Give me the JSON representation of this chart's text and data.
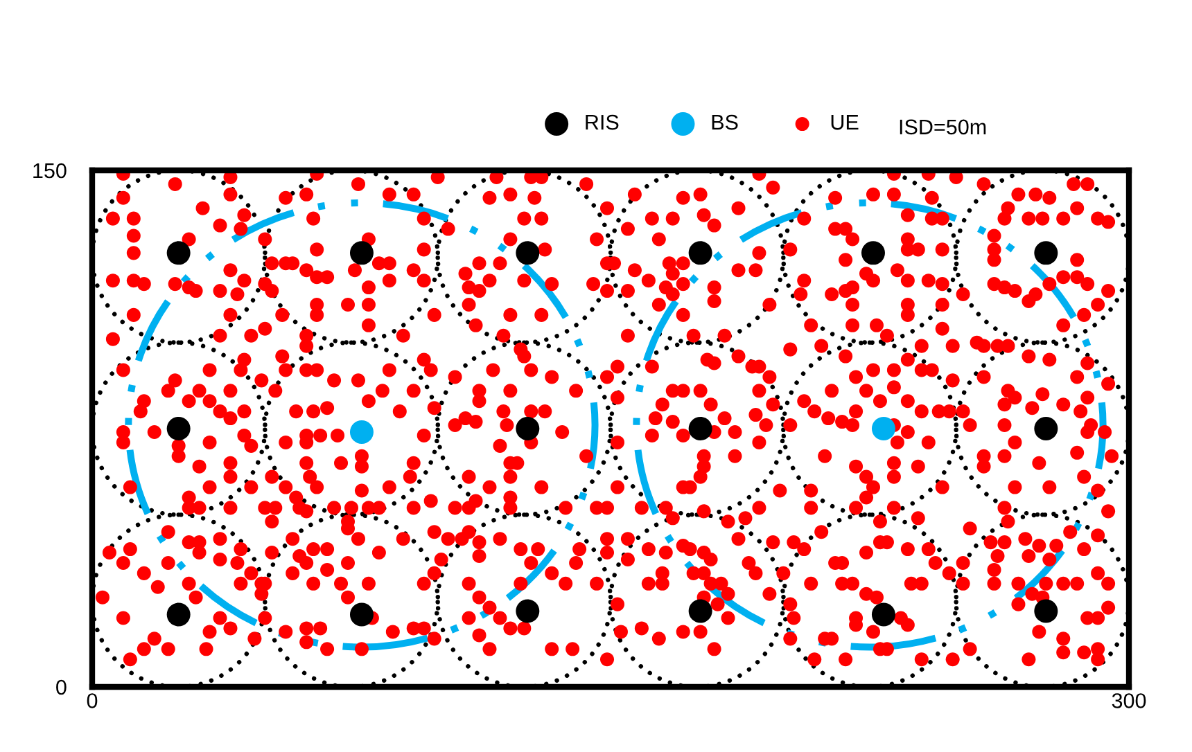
{
  "chart_data": {
    "type": "scatter",
    "xlim": [
      0,
      300
    ],
    "ylim": [
      0,
      150
    ],
    "xticks": [
      0,
      300
    ],
    "yticks": [
      0,
      150
    ],
    "marker": "circle",
    "legend": "top",
    "annotations": [
      "ISD=50m"
    ],
    "series": [
      {
        "name": "RIS",
        "color": "#000000",
        "x": [
          25,
          78,
          126,
          176,
          226,
          276,
          25,
          126,
          176,
          276,
          25,
          78,
          126,
          176,
          229,
          276
        ],
        "values": [
          126,
          126,
          126,
          126,
          126,
          126,
          75,
          75,
          75,
          75,
          21,
          21,
          22,
          22,
          21,
          22
        ]
      },
      {
        "name": "BS",
        "color": "#00b0f0",
        "x": [
          78,
          229
        ],
        "values": [
          74,
          75
        ]
      },
      {
        "name": "UE",
        "color": "#ff0000",
        "x": [
          9,
          40,
          65,
          62,
          56,
          77,
          86,
          93,
          24,
          9,
          32,
          40,
          44,
          6,
          12,
          64,
          96,
          37,
          43,
          50,
          12,
          28,
          80,
          12,
          65,
          96,
          52,
          56,
          58,
          62,
          65,
          68,
          76,
          83,
          86,
          93,
          86,
          96,
          80,
          6,
          12,
          15,
          24,
          28,
          30,
          40,
          44,
          37,
          42,
          50,
          52,
          65,
          65,
          74,
          80,
          55,
          40,
          12,
          99,
          6,
          37,
          46,
          50,
          62,
          62,
          80,
          90,
          9,
          24,
          22,
          34,
          44,
          43,
          49,
          55,
          56,
          62,
          65,
          70,
          77,
          84,
          86,
          93,
          96,
          98,
          15,
          14,
          28,
          31,
          34,
          37,
          40,
          40,
          44,
          53,
          59,
          64,
          68,
          80,
          89,
          99,
          100,
          117,
          127,
          130,
          143,
          149,
          157,
          171,
          176,
          187,
          193,
          197,
          115,
          121,
          128,
          125,
          130,
          103,
          146,
          162,
          168,
          177,
          180,
          155,
          164,
          121,
          131,
          112,
          118,
          149,
          151,
          108,
          109,
          112,
          115,
          125,
          133,
          145,
          149,
          109,
          121,
          130,
          111,
          119,
          157,
          161,
          167,
          171,
          168,
          166,
          168,
          171,
          180,
          180,
          187,
          192,
          193,
          164,
          171,
          155,
          174,
          183,
          196,
          155,
          124,
          125,
          127,
          116,
          105,
          112,
          112,
          121,
          133,
          140,
          149,
          152,
          152,
          127,
          131,
          119,
          108,
          111,
          162,
          168,
          171,
          176,
          178,
          180,
          187,
          191,
          193,
          196,
          193,
          197,
          192,
          183,
          179,
          165,
          163,
          168,
          232,
          242,
          250,
          258,
          268,
          273,
          277,
          284,
          288,
          215,
          226,
          232,
          243,
          243,
          246,
          236,
          265,
          264,
          271,
          275,
          281,
          285,
          291,
          294,
          215,
          218,
          220,
          206,
          202,
          236,
          236,
          239,
          246,
          261,
          261,
          218,
          224,
          226,
          233,
          236,
          242,
          246,
          206,
          205,
          214,
          218,
          220,
          220,
          236,
          236,
          246,
          252,
          261,
          261,
          264,
          267,
          271,
          273,
          277,
          281,
          285,
          285,
          288,
          291,
          287,
          294,
          281,
          208,
          220,
          227,
          230,
          246,
          202,
          211,
          218,
          226,
          232,
          236,
          240,
          240,
          243,
          249,
          249,
          256,
          258,
          262,
          265,
          271,
          277,
          288,
          285,
          294,
          258,
          221,
          214,
          224,
          232,
          236,
          240,
          206,
          209,
          213,
          217,
          221,
          228,
          245,
          248,
          252,
          264,
          265,
          267,
          272,
          275,
          281,
          286,
          288,
          9,
          9,
          18,
          25,
          25,
          34,
          44,
          46,
          31,
          40,
          40,
          46,
          52,
          56,
          62,
          66,
          71,
          62,
          78,
          78,
          72,
          62,
          63,
          93,
          96,
          92,
          56,
          59,
          65,
          78,
          86,
          98,
          11,
          28,
          28,
          31,
          34,
          40,
          50,
          53,
          52,
          60,
          62,
          70,
          75,
          80,
          83,
          74,
          74,
          77,
          83,
          90,
          93,
          99,
          22,
          28,
          31,
          31,
          37,
          37,
          43,
          42,
          46,
          5,
          9,
          11,
          15,
          19,
          22,
          28,
          30,
          37,
          34,
          40,
          43,
          49,
          49,
          50,
          50,
          52,
          58,
          60,
          64,
          68,
          62,
          58,
          64,
          68,
          72,
          74,
          74,
          80,
          81,
          87,
          93,
          96,
          96,
          99,
          56,
          62,
          66,
          62,
          68,
          78,
          3,
          9,
          18,
          15,
          22,
          11,
          33,
          47,
          105,
          120,
          136,
          127,
          118,
          143,
          152,
          162,
          171,
          180,
          186,
          193,
          195,
          177,
          177,
          176,
          171,
          173,
          186,
          199,
          152,
          121,
          123,
          121,
          109,
          115,
          130,
          121,
          105,
          109,
          111,
          121,
          137,
          146,
          149,
          159,
          166,
          168,
          177,
          184,
          189,
          193,
          103,
          107,
          112,
          109,
          118,
          112,
          124,
          127,
          129,
          141,
          149,
          149,
          155,
          161,
          166,
          171,
          173,
          177,
          179,
          187,
          190,
          192,
          197,
          196,
          200,
          101,
          109,
          112,
          115,
          118,
          121,
          125,
          124,
          133,
          137,
          140,
          146,
          155,
          161,
          165,
          165,
          174,
          177,
          179,
          182,
          177,
          181,
          184,
          184,
          159,
          164,
          152,
          153,
          171,
          176,
          180,
          112,
          115,
          109,
          133,
          139,
          149,
          99,
          202,
          220,
          232,
          236,
          233,
          242,
          212,
          221,
          224,
          232,
          232,
          239,
          226,
          224,
          221,
          208,
          208,
          246,
          232,
          239,
          228,
          230,
          228,
          236,
          242,
          244,
          237,
          240,
          252,
          248,
          220,
          217,
          215,
          217,
          224,
          211,
          206,
          203,
          208,
          202,
          203,
          202,
          212,
          214,
          221,
          221,
          224,
          227,
          226,
          228,
          230,
          234,
          236,
          240,
          218,
          209,
          249,
          254,
          254,
          252,
          254,
          264,
          258,
          264,
          258,
          267,
          274,
          277,
          285,
          288,
          289,
          293,
          295,
          287,
          291,
          267,
          294,
          264,
          265,
          260,
          262,
          264,
          270,
          271,
          274,
          277,
          279,
          283,
          287,
          291,
          291,
          294,
          281,
          285,
          261,
          261,
          268,
          276,
          272,
          275,
          268,
          274,
          288,
          291,
          294,
          281,
          281,
          287,
          291,
          291,
          271
        ],
        "values": [
          149,
          148,
          149,
          143,
          142,
          146,
          143,
          143,
          146,
          142,
          139,
          143,
          137,
          136,
          136,
          136,
          136,
          134,
          133,
          130,
          131,
          130,
          130,
          126,
          127,
          127,
          123,
          123,
          123,
          121,
          119,
          119,
          121,
          123,
          123,
          121,
          118,
          118,
          116,
          118,
          118,
          117,
          117,
          116,
          115,
          121,
          118,
          115,
          114,
          117,
          115,
          111,
          108,
          111,
          111,
          108,
          108,
          108,
          108,
          101,
          102,
          102,
          104,
          102,
          99,
          105,
          102,
          92,
          89,
          86,
          92,
          95,
          92,
          89,
          96,
          92,
          92,
          92,
          89,
          89,
          86,
          92,
          86,
          95,
          92,
          83,
          80,
          83,
          86,
          83,
          80,
          86,
          78,
          80,
          86,
          80,
          80,
          81,
          83,
          80,
          81,
          148,
          148,
          148,
          148,
          146,
          139,
          143,
          142,
          143,
          139,
          149,
          145,
          142,
          143,
          142,
          136,
          136,
          133,
          130,
          136,
          136,
          137,
          134,
          133,
          130,
          130,
          127,
          123,
          123,
          123,
          123,
          120,
          116,
          115,
          118,
          118,
          117,
          117,
          115,
          111,
          108,
          108,
          105,
          102,
          121,
          118,
          123,
          123,
          120,
          116,
          114,
          117,
          116,
          112,
          121,
          121,
          126,
          111,
          108,
          102,
          102,
          102,
          111,
          115,
          98,
          96,
          92,
          92,
          90,
          86,
          83,
          86,
          90,
          86,
          90,
          93,
          84,
          80,
          80,
          80,
          78,
          77,
          93,
          86,
          86,
          86,
          95,
          94,
          96,
          93,
          93,
          90,
          86,
          82,
          79,
          78,
          82,
          82,
          78,
          77,
          149,
          149,
          148,
          146,
          143,
          143,
          142,
          146,
          146,
          142,
          143,
          143,
          142,
          136,
          136,
          137,
          139,
          136,
          136,
          136,
          136,
          139,
          136,
          135,
          133,
          133,
          130,
          136,
          127,
          130,
          127,
          127,
          127,
          131,
          127,
          124,
          120,
          118,
          121,
          118,
          118,
          117,
          118,
          114,
          114,
          115,
          116,
          111,
          111,
          108,
          111,
          114,
          124,
          117,
          116,
          115,
          112,
          114,
          117,
          119,
          124,
          119,
          117,
          111,
          108,
          115,
          105,
          105,
          105,
          105,
          102,
          104,
          98,
          99,
          96,
          92,
          92,
          95,
          99,
          92,
          92,
          99,
          89,
          100,
          99,
          99,
          99,
          96,
          95,
          94,
          90,
          88,
          90,
          90,
          86,
          86,
          87,
          83,
          80,
          83,
          80,
          78,
          77,
          80,
          83,
          80,
          80,
          80,
          82,
          86,
          84,
          81,
          85,
          82,
          80,
          84,
          74,
          71,
          74,
          70,
          67,
          71,
          73,
          70,
          64,
          65,
          61,
          58,
          61,
          71,
          73,
          73,
          73,
          71,
          67,
          64,
          65,
          65,
          61,
          65,
          73,
          61,
          58,
          55,
          58,
          57,
          58,
          54,
          58,
          55,
          52,
          52,
          58,
          52,
          52,
          52,
          48,
          52,
          51,
          52,
          52,
          52,
          52,
          48,
          46,
          43,
          39,
          43,
          52,
          45,
          45,
          42,
          42,
          39,
          43,
          37,
          40,
          36,
          33,
          39,
          36,
          40,
          33,
          29,
          36,
          30,
          26,
          20,
          16,
          17,
          30,
          30,
          27,
          30,
          20,
          39,
          43,
          38,
          40,
          40,
          36,
          33,
          30,
          34,
          30,
          36,
          26,
          30,
          20,
          16,
          17,
          17,
          30,
          33,
          16,
          17,
          17,
          13,
          11,
          11,
          26,
          20,
          14,
          11,
          11,
          8,
          11,
          14,
          76,
          76,
          74,
          71,
          70,
          67,
          71,
          73,
          73,
          74,
          74,
          71,
          76,
          67,
          64,
          61,
          58,
          58,
          67,
          57,
          58,
          65,
          65,
          61,
          61,
          58,
          58,
          55,
          52,
          52,
          54,
          52,
          52,
          52,
          52,
          52,
          52,
          49,
          51,
          48,
          49,
          52,
          43,
          43,
          42,
          45,
          43,
          38,
          40,
          36,
          40,
          40,
          43,
          39,
          43,
          40,
          39,
          41,
          40,
          39,
          37,
          43,
          36,
          33,
          42,
          27,
          33,
          37,
          30,
          26,
          23,
          20,
          17,
          17,
          30,
          33,
          30,
          36,
          30,
          37,
          30,
          33,
          30,
          33,
          33,
          30,
          30,
          26,
          24,
          27,
          20,
          17,
          14,
          24,
          16,
          16,
          16,
          11,
          15,
          11,
          20,
          11,
          11,
          8,
          14,
          76,
          76,
          76,
          74,
          71,
          71,
          67,
          64,
          61,
          65,
          61,
          64,
          58,
          55,
          52,
          57,
          52,
          58,
          52,
          49,
          48,
          42,
          42,
          40,
          40,
          36,
          30,
          30,
          30,
          33,
          30,
          30,
          36,
          36,
          39,
          45,
          40,
          42,
          30,
          24,
          20,
          14,
          14,
          14,
          20,
          18,
          27,
          26,
          16,
          11,
          11,
          20,
          18,
          8,
          8,
          8,
          8,
          11,
          46,
          36,
          76,
          76,
          67,
          67,
          64,
          71,
          65,
          58,
          68,
          74,
          76,
          74,
          67,
          61,
          57,
          58,
          51,
          52,
          48,
          42,
          38,
          42,
          43,
          38,
          41,
          37,
          41,
          45,
          40,
          44,
          33,
          30,
          30,
          30,
          34,
          30,
          30,
          30,
          27,
          26,
          24,
          16,
          20,
          20,
          23,
          14,
          10,
          10,
          11,
          8,
          8
        ]
      }
    ]
  }
}
